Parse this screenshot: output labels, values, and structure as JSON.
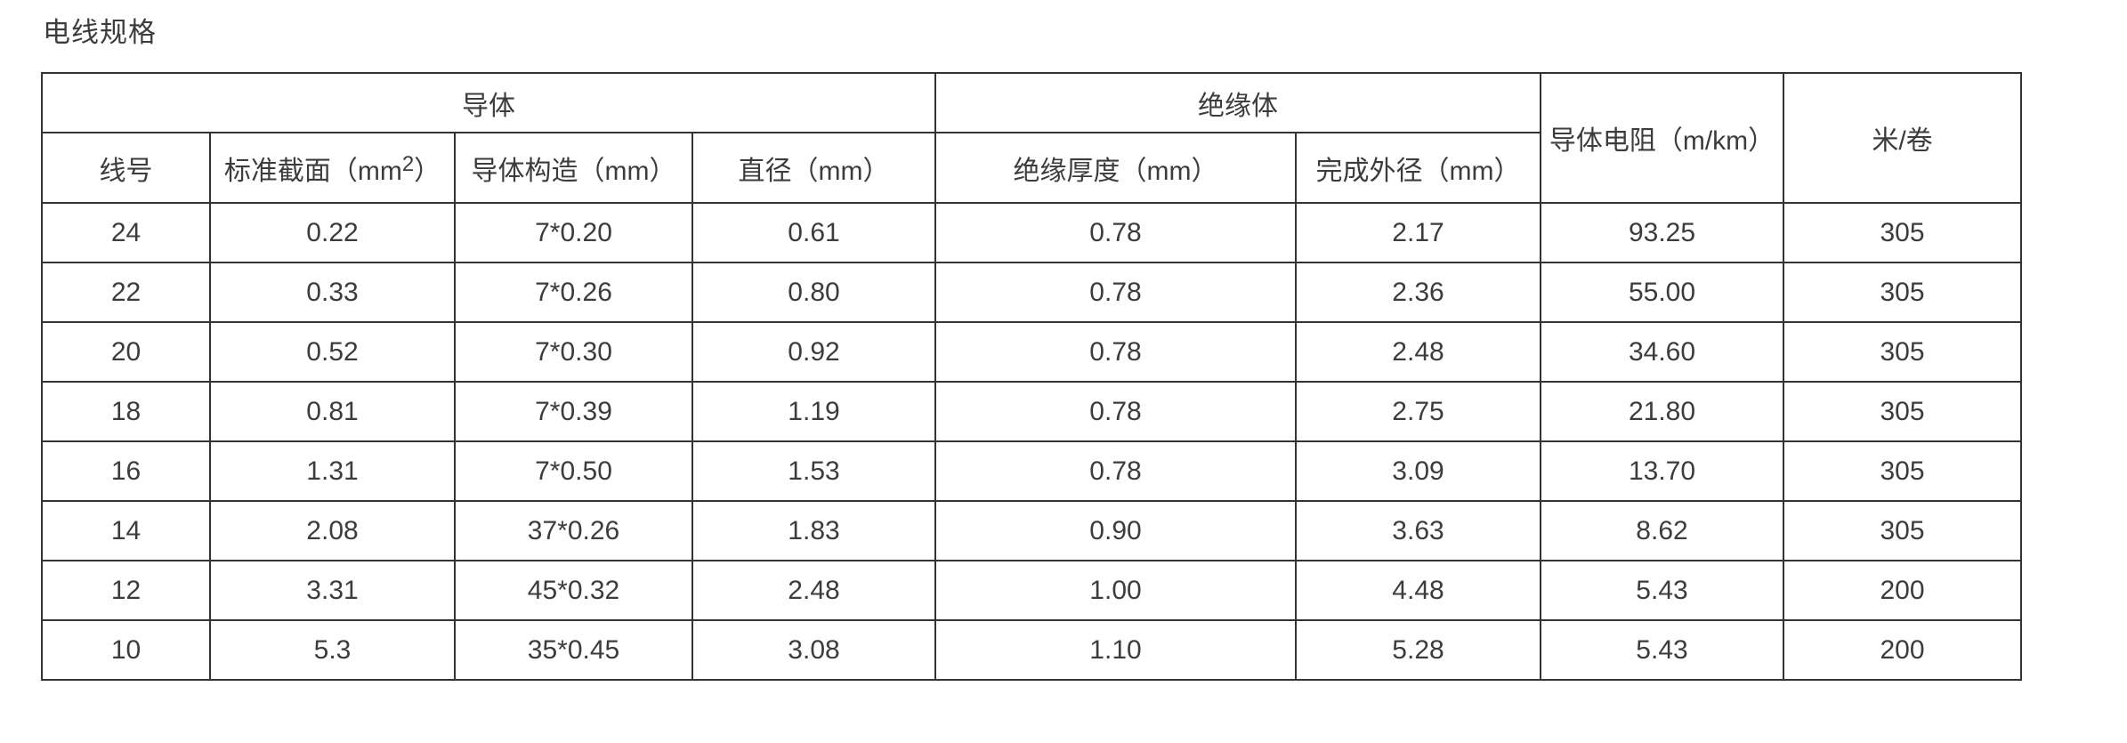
{
  "page": {
    "title": "电线规格"
  },
  "table": {
    "header": {
      "conductor_group": "导体",
      "insulator_group": "绝缘体",
      "resistance": "导体电阻（m/km）",
      "meters_per_roll": "米/卷",
      "wire_gauge": "线号",
      "cross_section_pre": "标准截面（mm",
      "cross_section_sup": "2",
      "cross_section_post": "）",
      "conductor_construction": "导体构造（mm）",
      "diameter": "直径（mm）",
      "insulation_thickness": "绝缘厚度（mm）",
      "finished_outer_diameter": "完成外径（mm）"
    },
    "rows": [
      [
        "24",
        "0.22",
        "7*0.20",
        "0.61",
        "0.78",
        "2.17",
        "93.25",
        "305"
      ],
      [
        "22",
        "0.33",
        "7*0.26",
        "0.80",
        "0.78",
        "2.36",
        "55.00",
        "305"
      ],
      [
        "20",
        "0.52",
        "7*0.30",
        "0.92",
        "0.78",
        "2.48",
        "34.60",
        "305"
      ],
      [
        "18",
        "0.81",
        "7*0.39",
        "1.19",
        "0.78",
        "2.75",
        "21.80",
        "305"
      ],
      [
        "16",
        "1.31",
        "7*0.50",
        "1.53",
        "0.78",
        "3.09",
        "13.70",
        "305"
      ],
      [
        "14",
        "2.08",
        "37*0.26",
        "1.83",
        "0.90",
        "3.63",
        "8.62",
        "305"
      ],
      [
        "12",
        "3.31",
        "45*0.32",
        "2.48",
        "1.00",
        "4.48",
        "5.43",
        "200"
      ],
      [
        "10",
        "5.3",
        "35*0.45",
        "3.08",
        "1.10",
        "5.28",
        "5.43",
        "200"
      ]
    ]
  },
  "colors": {
    "text": "#3c3c3c",
    "border": "#333333",
    "background": "#ffffff"
  }
}
